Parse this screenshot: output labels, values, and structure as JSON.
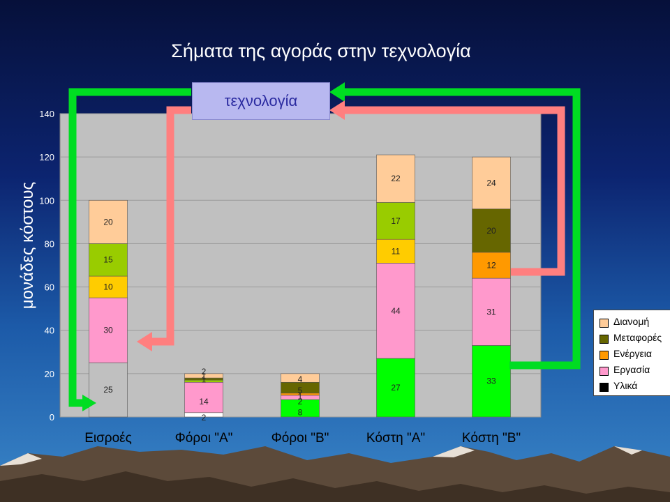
{
  "slide_title": "Σήματα της αγοράς στην τεχνολογία",
  "tech_box_label": "τεχνολογία",
  "colors": {
    "Υλικά": "#ffffff",
    "Εργασία": "#ff99cc",
    "Ενέργεια": "#ffcc00",
    "Μεταφορές": "#99cc00",
    "Διανομή": "#ffcc99",
    "Φόροι Υλικά": "#ffffff",
    "Φόροι Εργασία": "#ff99cc",
    "Φόροι Ενέργεια": "#99cc00",
    "Φόροι Μεταφορές": "#666600",
    "Φόροι Διανομή": "#ffcc99",
    "B Υλικά": "#00ff00",
    "B Εργασία": "#ff99cc",
    "B Ενέργεια": "#ff9900",
    "B Μεταφορές": "#666600",
    "B Διανομή": "#ffcc99",
    "arrow_green": "#00dd22",
    "arrow_red": "#ff7f7f",
    "plot_bg": "#c0c0c0"
  },
  "legend": [
    {
      "label": "Διανομή",
      "color": "#ffcc99"
    },
    {
      "label": "Μεταφορές",
      "color": "#666600"
    },
    {
      "label": "Ενέργεια",
      "color": "#ff9900"
    },
    {
      "label": "Εργασία",
      "color": "#ff99cc"
    },
    {
      "label": "Υλικά",
      "color": "#000000"
    }
  ],
  "chart_data": {
    "type": "bar",
    "stacked": true,
    "ylabel": "μονάδες κόστους",
    "ylim": [
      0,
      140
    ],
    "yticks": [
      "0",
      "20",
      "40",
      "60",
      "80",
      "100",
      "120",
      "140"
    ],
    "categories": [
      "Εισροές",
      "Φόροι \"Α\"",
      "Φόροι \"Β\"",
      "Κόστη \"Α\"",
      "Κόστη \"Β\""
    ],
    "series": [
      {
        "name": "Υλικά",
        "values": [
          25,
          2,
          8,
          27,
          33
        ]
      },
      {
        "name": "Εργασία",
        "values": [
          30,
          14,
          2,
          44,
          31
        ]
      },
      {
        "name": "Ενέργεια",
        "values": [
          10,
          1,
          1,
          11,
          12
        ]
      },
      {
        "name": "Μεταφορές",
        "values": [
          15,
          1,
          5,
          17,
          20
        ]
      },
      {
        "name": "Διανομή",
        "values": [
          20,
          2,
          4,
          22,
          24
        ]
      }
    ],
    "segment_labels": [
      [
        "25",
        "30",
        "10",
        "15",
        "20"
      ],
      [
        "2",
        "14",
        "1",
        "1",
        "2"
      ],
      [
        "8",
        "2",
        "1",
        "5",
        "4"
      ],
      [
        "27",
        "44",
        "11",
        "17",
        "22"
      ],
      [
        "33",
        "31",
        "12",
        "20",
        "24"
      ]
    ],
    "legend_position": "right",
    "grid": true
  }
}
